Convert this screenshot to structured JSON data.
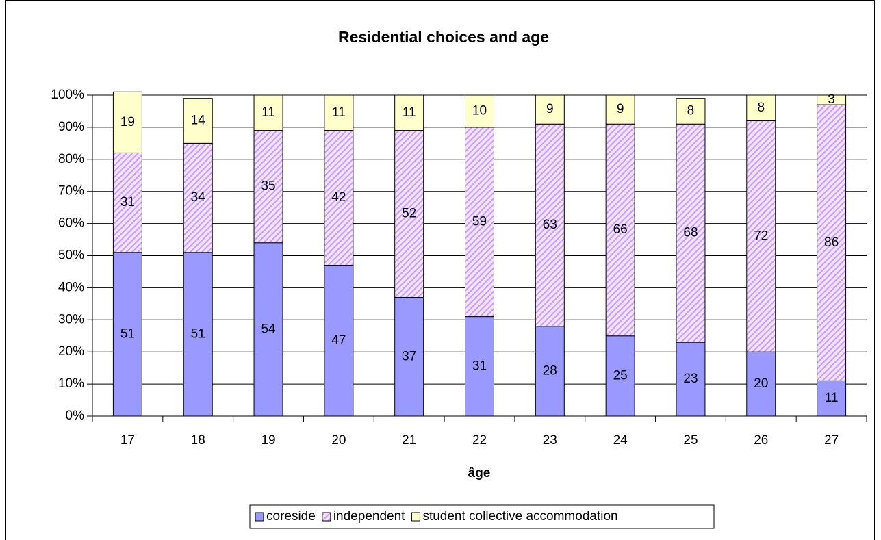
{
  "chart_data": {
    "type": "stacked_bar",
    "title": "Residential choices and age",
    "x_label": "âge",
    "categories": [
      "17",
      "18",
      "19",
      "20",
      "21",
      "22",
      "23",
      "24",
      "25",
      "26",
      "27"
    ],
    "series": [
      {
        "name": "coreside",
        "color": "#9999ff",
        "values": [
          51,
          51,
          54,
          47,
          37,
          31,
          28,
          25,
          23,
          20,
          11
        ]
      },
      {
        "name": "independent",
        "color": "#cc99ff",
        "hatched": true,
        "values": [
          31,
          34,
          35,
          42,
          52,
          59,
          63,
          66,
          68,
          72,
          86
        ]
      },
      {
        "name": "student collective accommodation",
        "color": "#ffffcc",
        "values": [
          19,
          14,
          11,
          11,
          11,
          10,
          9,
          9,
          8,
          8,
          3
        ]
      }
    ],
    "ylim": [
      0,
      100
    ],
    "yticks": [
      {
        "value": 0,
        "label": "0%"
      },
      {
        "value": 10,
        "label": "10%"
      },
      {
        "value": 20,
        "label": "20%"
      },
      {
        "value": 30,
        "label": "30%"
      },
      {
        "value": 40,
        "label": "40%"
      },
      {
        "value": 50,
        "label": "50%"
      },
      {
        "value": 60,
        "label": "60%"
      },
      {
        "value": 70,
        "label": "70%"
      },
      {
        "value": 80,
        "label": "80%"
      },
      {
        "value": 90,
        "label": "90%"
      },
      {
        "value": 100,
        "label": "100%"
      }
    ],
    "grid": true,
    "legend": "bottom"
  }
}
